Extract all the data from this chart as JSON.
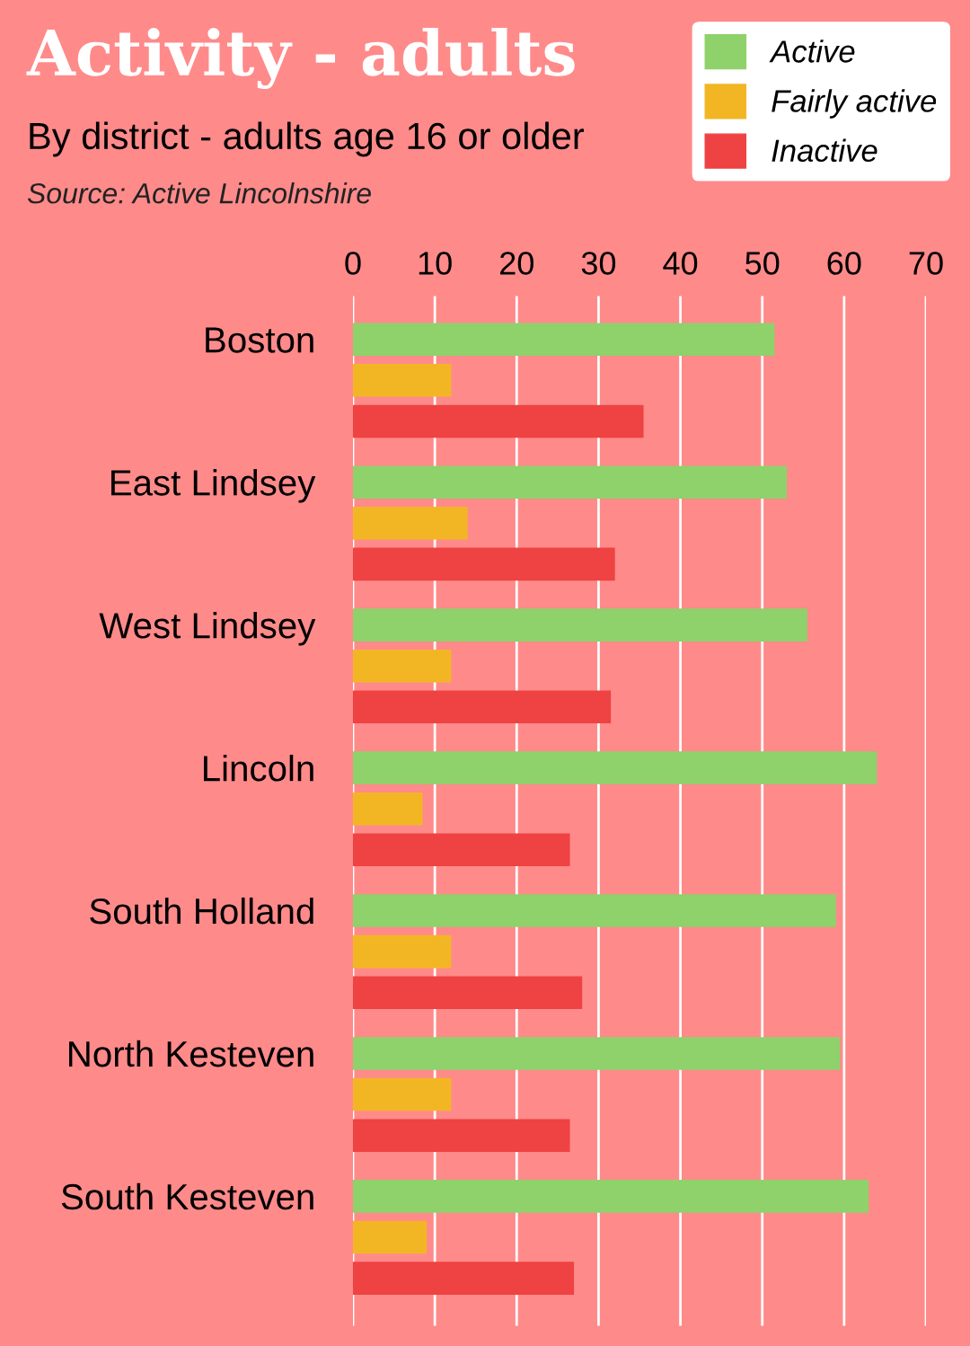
{
  "chart_data": {
    "type": "bar",
    "orientation": "horizontal",
    "title": "Activity - adults",
    "subtitle": "By district - adults age 16 or older",
    "annotations": [
      "Source: Active Lincolnshire"
    ],
    "categories": [
      "Boston",
      "East Lindsey",
      "West Lindsey",
      "Lincoln",
      "South Holland",
      "North Kesteven",
      "South Kesteven"
    ],
    "series": [
      {
        "name": "Active",
        "color": "#8fd16a",
        "values": [
          51.5,
          53,
          55.5,
          64,
          59,
          59.5,
          63
        ]
      },
      {
        "name": "Fairly active",
        "color": "#f2b625",
        "values": [
          12,
          14,
          12,
          8.5,
          12,
          12,
          9
        ]
      },
      {
        "name": "Inactive",
        "color": "#ef4242",
        "values": [
          35.5,
          32,
          31.5,
          26.5,
          28,
          26.5,
          27
        ]
      }
    ],
    "xlim": [
      0,
      70
    ],
    "xticks": [
      0,
      10,
      20,
      30,
      40,
      50,
      60,
      70
    ],
    "grid": "x",
    "legend": "top right"
  }
}
